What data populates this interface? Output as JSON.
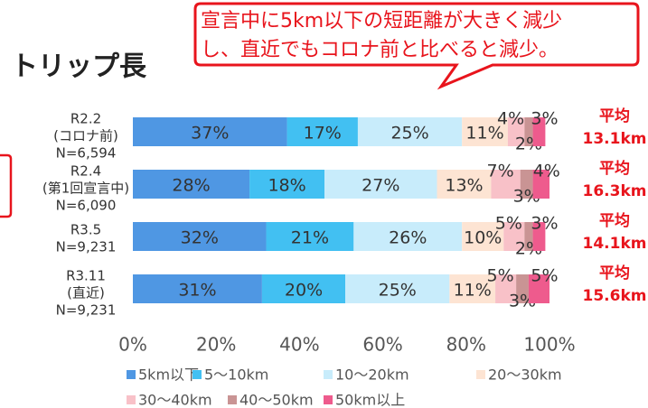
{
  "chart_data": {
    "type": "stacked_bar_horizontal",
    "title": "トリップ長",
    "callout": [
      "宣言中に5km以下の短距離が大きく減少",
      "し、直近でもコロナ前と比べると減少。"
    ],
    "categories": [
      [
        "R2.2",
        "(コロナ前)",
        "N=6,594"
      ],
      [
        "R2.4",
        "(第1回宣言中)",
        "N=6,090"
      ],
      [
        "R3.5",
        "N=9,231"
      ],
      [
        "R3.11",
        "(直近)",
        "N=9,231"
      ]
    ],
    "series": [
      {
        "name": "5km以下",
        "color": "#4f97e3",
        "values": [
          37,
          28,
          32,
          31
        ],
        "value_labels": [
          "37%",
          "28%",
          "32%",
          "31%"
        ]
      },
      {
        "name": "5〜10km",
        "color": "#42c0f2",
        "values": [
          17,
          18,
          21,
          20
        ],
        "value_labels": [
          "17%",
          "18%",
          "21%",
          "20%"
        ]
      },
      {
        "name": "10〜20km",
        "color": "#c8ecfb",
        "values": [
          25,
          27,
          26,
          25
        ],
        "value_labels": [
          "25%",
          "27%",
          "26%",
          "25%"
        ]
      },
      {
        "name": "20〜30km",
        "color": "#fde4d3",
        "values": [
          11,
          13,
          10,
          11
        ],
        "value_labels": [
          "11%",
          "13%",
          "10%",
          "11%"
        ]
      },
      {
        "name": "30〜40km",
        "color": "#f8c1c8",
        "values": [
          4,
          7,
          5,
          5
        ],
        "value_labels": [
          "4%",
          "7%",
          "5%",
          "5%"
        ]
      },
      {
        "name": "40〜50km",
        "color": "#c99494",
        "values": [
          2,
          3,
          2,
          3
        ],
        "value_labels": [
          "2%",
          "3%",
          "2%",
          "3%"
        ]
      },
      {
        "name": "50km以上",
        "color": "#ee5b8d",
        "values": [
          3,
          4,
          3,
          5
        ],
        "value_labels": [
          "3%",
          "4%",
          "3%",
          "5%"
        ]
      }
    ],
    "average_label": "平均",
    "averages": [
      "13.1km",
      "16.3km",
      "14.1km",
      "15.6km"
    ],
    "xlim": [
      0,
      100
    ],
    "xticks": [
      {
        "value": 0,
        "label": "0%"
      },
      {
        "value": 20,
        "label": "20%"
      },
      {
        "value": 40,
        "label": "40%"
      },
      {
        "value": 60,
        "label": "60%"
      },
      {
        "value": 80,
        "label": "80%"
      },
      {
        "value": 100,
        "label": "100%"
      }
    ]
  }
}
